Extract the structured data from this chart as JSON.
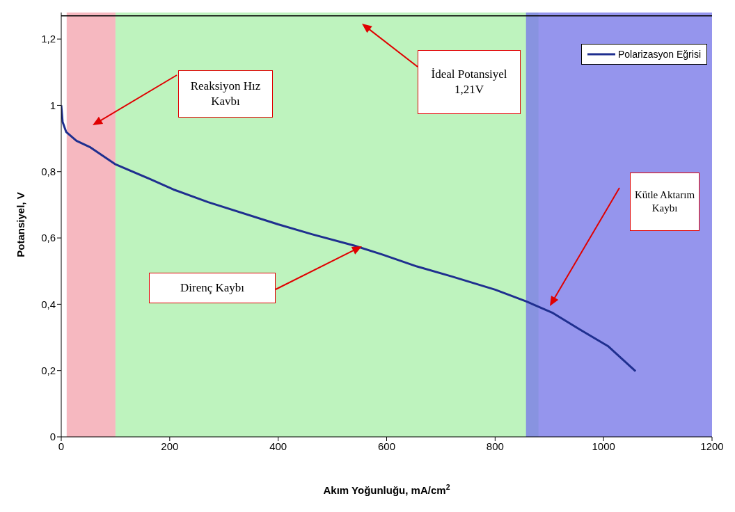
{
  "chart_data": {
    "type": "line",
    "xlabel": "Akım Yoğunluğu, mA/cm$^{2}$",
    "ylabel": "Potansiyel, V",
    "x": [
      0,
      2.5,
      9,
      28,
      54,
      99,
      163,
      207,
      271,
      400,
      463,
      540,
      592,
      656,
      720,
      800,
      857,
      905,
      957,
      1008,
      1059
    ],
    "series": [
      {
        "name": "Polarizasyon Eğrisi",
        "color": "#1f2f8f",
        "values": [
          1.0,
          0.95,
          0.92,
          0.893,
          0.873,
          0.823,
          0.778,
          0.746,
          0.708,
          0.641,
          0.611,
          0.577,
          0.55,
          0.514,
          0.484,
          0.444,
          0.409,
          0.375,
          0.323,
          0.274,
          0.198
        ]
      }
    ],
    "xlim": [
      0,
      1200
    ],
    "xticks": [
      0,
      200,
      400,
      600,
      800,
      1000,
      1200
    ],
    "ylim": [
      0,
      1.28
    ],
    "yticks": [
      0,
      {
        "value": 0.2,
        "label": "0,2"
      },
      {
        "value": 0.4,
        "label": "0,4"
      },
      {
        "value": 0.6,
        "label": "0,6"
      },
      {
        "value": 0.8,
        "label": "0,8"
      },
      1,
      {
        "value": 1.2,
        "label": "1,2"
      }
    ],
    "bands": [
      {
        "axis": "x",
        "from": 10,
        "to": 100,
        "color": "#f4a6b0"
      },
      {
        "axis": "x",
        "from": 100,
        "to": 880,
        "color": "#aef0ae"
      },
      {
        "axis": "x",
        "from": 857,
        "to": 1200,
        "color": "#7a7ae8"
      }
    ],
    "ref_lines": [
      {
        "axis": "y",
        "value": 1.27,
        "color": "#000000"
      }
    ],
    "annotations": [
      "Reaksiyon Hız Kavbı",
      "İdeal Potansiyel 1,21V",
      "Direnç Kaybı",
      "Kütle Aktarım Kaybı"
    ],
    "legend": "top right",
    "grid": false,
    "marker": "none",
    "line_style": "solid"
  }
}
